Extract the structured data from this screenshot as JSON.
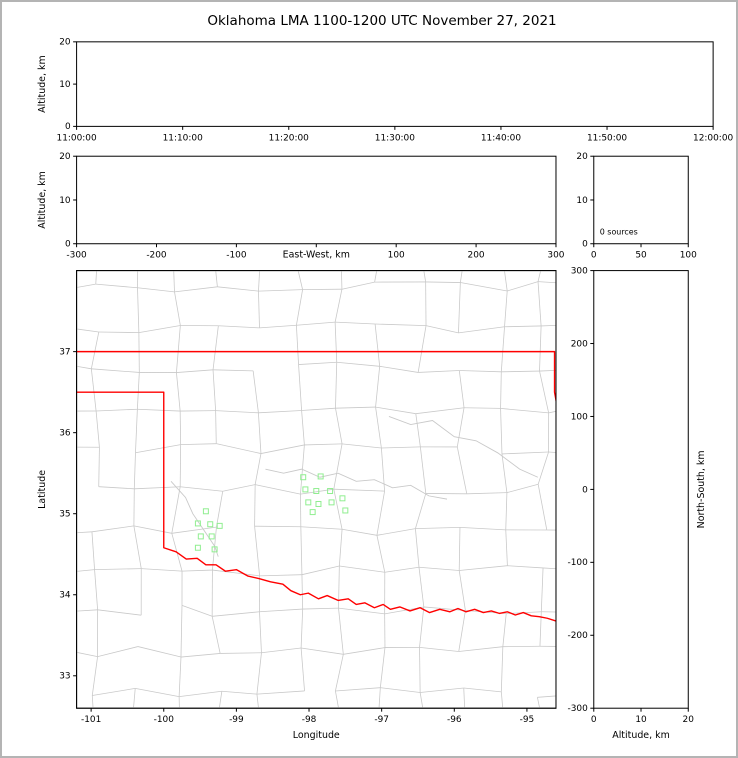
{
  "figure": {
    "title": "Oklahoma LMA 1100-1200 UTC November 27, 2021"
  },
  "colors": {
    "axis": "#000000",
    "county_lines": "#c9c9c9",
    "state_border": "#ff0000",
    "source_marker": "#90ee90",
    "figure_frame": "#b4b4b4",
    "background": "#ffffff"
  },
  "chart_data": {
    "type": "scatter",
    "title": "Oklahoma LMA 1100-1200 UTC November 27, 2021",
    "panels": {
      "time_height": {
        "role": "source altitude vs time",
        "xlabel": "",
        "ylabel": "Altitude, km",
        "xlim": [
          0,
          3600
        ],
        "ylim": [
          0,
          20
        ],
        "xticks": [
          0,
          600,
          1200,
          1800,
          2400,
          3000,
          3600
        ],
        "xtick_labels": [
          "11:00:00",
          "11:10:00",
          "11:20:00",
          "11:30:00",
          "11:40:00",
          "11:50:00",
          "12:00:00"
        ],
        "yticks": [
          0,
          10,
          20
        ],
        "points": []
      },
      "ew_height": {
        "role": "source altitude vs east-west distance",
        "xlabel": "East-West, km",
        "xlabel_inline": true,
        "ylabel": "Altitude, km",
        "xlim": [
          -300,
          300
        ],
        "ylim": [
          0,
          20
        ],
        "xticks": [
          -300,
          -200,
          -100,
          0,
          100,
          200,
          300
        ],
        "xtick_labels": [
          "-300",
          "-200",
          "-100",
          "",
          "100",
          "200",
          "300"
        ],
        "yticks": [
          0,
          10,
          20
        ],
        "points": []
      },
      "source_histogram": {
        "role": "histogram of source altitudes",
        "annotation": "0 sources",
        "xlim": [
          0,
          100
        ],
        "ylim": [
          0,
          20
        ],
        "xticks": [
          0,
          50,
          100
        ],
        "xtick_labels": [
          "0",
          "50",
          "100"
        ],
        "yticks": [
          0,
          10,
          20
        ],
        "values": []
      },
      "plan_view_map": {
        "role": "plan view with Oklahoma state and county borders",
        "xlabel": "Longitude",
        "ylabel": "Latitude",
        "xlim": [
          -101.2,
          -94.6
        ],
        "ylim": [
          32.6,
          38.0
        ],
        "xticks": [
          -101,
          -100,
          -99,
          -98,
          -97,
          -96,
          -95
        ],
        "xtick_labels": [
          "-101",
          "-100",
          "-99",
          "-98",
          "-97",
          "-96",
          "-95"
        ],
        "yticks": [
          33,
          34,
          35,
          36,
          37
        ],
        "marker": "open-square",
        "sources_lonlat": [
          [
            -98.08,
            35.45
          ],
          [
            -97.84,
            35.46
          ],
          [
            -98.05,
            35.3
          ],
          [
            -97.9,
            35.28
          ],
          [
            -97.71,
            35.28
          ],
          [
            -98.01,
            35.14
          ],
          [
            -97.87,
            35.12
          ],
          [
            -97.69,
            35.14
          ],
          [
            -97.54,
            35.19
          ],
          [
            -97.95,
            35.02
          ],
          [
            -97.5,
            35.04
          ],
          [
            -99.42,
            35.03
          ],
          [
            -99.53,
            34.88
          ],
          [
            -99.36,
            34.87
          ],
          [
            -99.23,
            34.85
          ],
          [
            -99.49,
            34.72
          ],
          [
            -99.34,
            34.72
          ],
          [
            -99.53,
            34.58
          ],
          [
            -99.3,
            34.56
          ]
        ],
        "state_border_polylines": [
          [
            [
              -101.2,
              37.0
            ],
            [
              -94.62,
              37.0
            ],
            [
              -94.62,
              36.5
            ],
            [
              -94.47,
              35.75
            ]
          ],
          [
            [
              -101.2,
              36.5
            ],
            [
              -100.0,
              36.5
            ],
            [
              -100.0,
              34.58
            ],
            [
              -99.83,
              34.53
            ],
            [
              -99.69,
              34.44
            ],
            [
              -99.54,
              34.45
            ],
            [
              -99.42,
              34.37
            ],
            [
              -99.28,
              34.37
            ],
            [
              -99.15,
              34.29
            ],
            [
              -99.0,
              34.31
            ],
            [
              -98.84,
              34.23
            ],
            [
              -98.69,
              34.2
            ],
            [
              -98.53,
              34.16
            ],
            [
              -98.36,
              34.13
            ],
            [
              -98.25,
              34.05
            ],
            [
              -98.12,
              34.0
            ],
            [
              -98.01,
              34.02
            ],
            [
              -97.87,
              33.95
            ],
            [
              -97.75,
              33.99
            ],
            [
              -97.6,
              33.93
            ],
            [
              -97.46,
              33.95
            ],
            [
              -97.35,
              33.88
            ],
            [
              -97.23,
              33.9
            ],
            [
              -97.1,
              33.84
            ],
            [
              -96.98,
              33.88
            ],
            [
              -96.88,
              33.82
            ],
            [
              -96.75,
              33.85
            ],
            [
              -96.61,
              33.8
            ],
            [
              -96.47,
              33.84
            ],
            [
              -96.34,
              33.78
            ],
            [
              -96.2,
              33.82
            ],
            [
              -96.06,
              33.79
            ],
            [
              -95.95,
              33.83
            ],
            [
              -95.84,
              33.79
            ],
            [
              -95.72,
              33.82
            ],
            [
              -95.6,
              33.78
            ],
            [
              -95.49,
              33.8
            ],
            [
              -95.38,
              33.77
            ],
            [
              -95.27,
              33.79
            ],
            [
              -95.16,
              33.75
            ],
            [
              -95.05,
              33.78
            ],
            [
              -94.94,
              33.74
            ],
            [
              -94.83,
              33.73
            ],
            [
              -94.72,
              33.71
            ],
            [
              -94.58,
              33.67
            ]
          ]
        ],
        "rivers": [
          [
            [
              -98.6,
              35.55
            ],
            [
              -98.35,
              35.5
            ],
            [
              -98.1,
              35.55
            ],
            [
              -97.85,
              35.45
            ],
            [
              -97.6,
              35.5
            ],
            [
              -97.35,
              35.4
            ],
            [
              -97.1,
              35.42
            ],
            [
              -96.85,
              35.32
            ],
            [
              -96.6,
              35.35
            ],
            [
              -96.35,
              35.22
            ],
            [
              -96.1,
              35.18
            ]
          ],
          [
            [
              -96.9,
              36.2
            ],
            [
              -96.6,
              36.1
            ],
            [
              -96.3,
              36.15
            ],
            [
              -96.0,
              35.95
            ],
            [
              -95.7,
              35.9
            ],
            [
              -95.4,
              35.75
            ],
            [
              -95.1,
              35.55
            ],
            [
              -94.85,
              35.45
            ]
          ],
          [
            [
              -99.9,
              35.4
            ],
            [
              -99.7,
              35.2
            ],
            [
              -99.6,
              35.0
            ],
            [
              -99.45,
              34.8
            ],
            [
              -99.3,
              34.6
            ],
            [
              -99.25,
              34.47
            ]
          ]
        ]
      },
      "ns_height": {
        "role": "north-south distance vs source altitude",
        "xlabel": "Altitude, km",
        "ylabel": "North-South, km",
        "ylabel_right": true,
        "xlim": [
          0,
          20
        ],
        "ylim": [
          -300,
          300
        ],
        "xticks": [
          0,
          10,
          20
        ],
        "xtick_labels": [
          "0",
          "10",
          "20"
        ],
        "yticks": [
          -300,
          -200,
          -100,
          0,
          100,
          200,
          300
        ],
        "points": []
      }
    }
  }
}
